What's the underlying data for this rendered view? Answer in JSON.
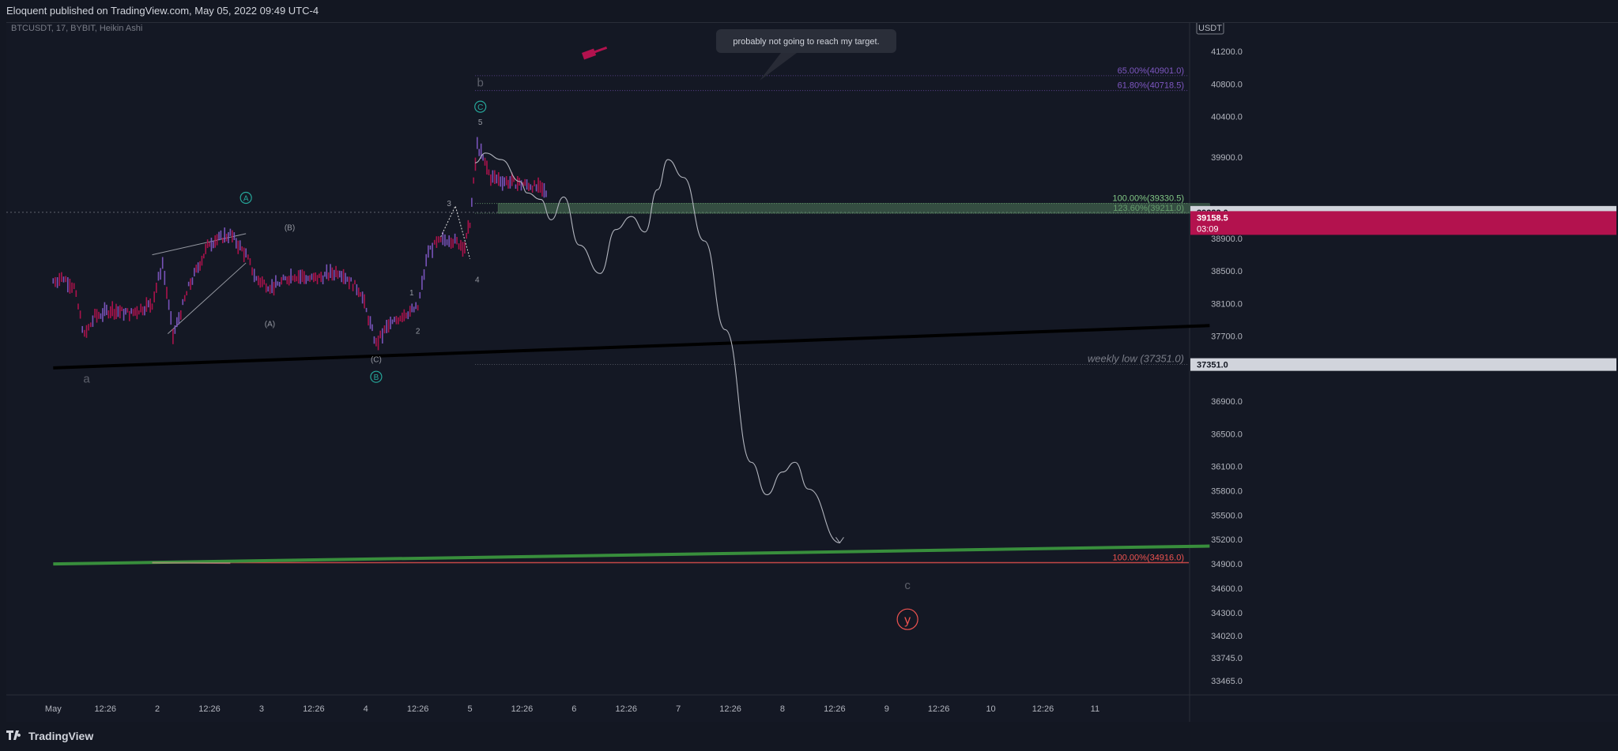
{
  "header": {
    "publisher_line": "Eloquent published on TradingView.com, May 05, 2022 09:49 UTC-4"
  },
  "footer": {
    "brand": "TradingView"
  },
  "chart_data": {
    "type": "candlestick",
    "symbol_line": "BTCUSDT, 17, BYBIT, Heikin Ashi",
    "currency_badge": "USDT",
    "price_axis": {
      "ticks": [
        "41200.0",
        "40800.0",
        "40400.0",
        "39900.0",
        "38900.0",
        "38500.0",
        "38100.0",
        "37700.0",
        "36900.0",
        "36500.0",
        "36100.0",
        "35800.0",
        "35500.0",
        "35200.0",
        "34900.0",
        "34600.0",
        "34300.0",
        "34020.0",
        "33745.0",
        "33465.0"
      ],
      "tick_values": [
        41200,
        40800,
        40400,
        39900,
        38900,
        38500,
        38100,
        37700,
        36900,
        36500,
        36100,
        35800,
        35500,
        35200,
        34900,
        34600,
        34300,
        34020,
        33745,
        33465
      ]
    },
    "time_axis": {
      "labels": [
        "May",
        "12:26",
        "2",
        "12:26",
        "3",
        "12:26",
        "4",
        "12:26",
        "5",
        "12:26",
        "6",
        "12:26",
        "7",
        "12:26",
        "8",
        "12:26",
        "9",
        "12:26",
        "10",
        "12:26",
        "11"
      ]
    },
    "price_badges": [
      {
        "label": "39222.0",
        "value": 39222.0,
        "color": "#d1d4dc",
        "text_color": "#131722"
      },
      {
        "label": "39158.5",
        "value": 39158.5,
        "color": "#b3124e",
        "text_color": "#ffffff",
        "sub": "03:09"
      },
      {
        "label": "37351.0",
        "value": 37351.0,
        "color": "#d1d4dc",
        "text_color": "#131722"
      }
    ],
    "horizontal_levels": [
      {
        "label": "65.00%(40901.0)",
        "value": 40901.0,
        "color": "#7e57c2"
      },
      {
        "label": "61.80%(40718.5)",
        "value": 40718.5,
        "color": "#7e57c2"
      },
      {
        "label": "100.00%(39330.5)",
        "value": 39330.5,
        "color": "#81c784"
      },
      {
        "label": "123.60%(39211.0)",
        "value": 39211.0,
        "color": "#81c784"
      },
      {
        "label": "weekly low (37351.0)",
        "value": 37351.0,
        "color": "#787b86"
      },
      {
        "label": "100.00%(34916.0)",
        "value": 34916.0,
        "color": "#ef5350"
      }
    ],
    "callout": {
      "text": "probably not going to reach my target."
    },
    "wave_labels": [
      {
        "text": "a",
        "t": 0.32,
        "price": 37130
      },
      {
        "text": "b",
        "t": 4.1,
        "price": 40770
      },
      {
        "text": "c",
        "t": 8.2,
        "price": 34590
      },
      {
        "text": "A",
        "t": 1.85,
        "price": 39400,
        "circled": true
      },
      {
        "text": "B",
        "t": 3.1,
        "price": 37200,
        "circled": true
      },
      {
        "text": "C",
        "t": 4.1,
        "price": 40520,
        "circled": true
      },
      {
        "text": "y",
        "t": 8.2,
        "price": 34220,
        "circled": true
      },
      {
        "text": "(B)",
        "t": 2.27,
        "price": 39000
      },
      {
        "text": "(A)",
        "t": 2.08,
        "price": 37820
      },
      {
        "text": "(C)",
        "t": 3.1,
        "price": 37380
      },
      {
        "text": "1",
        "t": 3.44,
        "price": 38200
      },
      {
        "text": "2",
        "t": 3.5,
        "price": 37730
      },
      {
        "text": "3",
        "t": 3.8,
        "price": 39300
      },
      {
        "text": "4",
        "t": 4.07,
        "price": 38360
      },
      {
        "text": "5",
        "t": 4.1,
        "price": 40300
      }
    ],
    "price_series_close": [
      [
        0.0,
        38380
      ],
      [
        0.1,
        38420
      ],
      [
        0.2,
        38300
      ],
      [
        0.3,
        37700
      ],
      [
        0.4,
        37940
      ],
      [
        0.55,
        38020
      ],
      [
        0.75,
        37980
      ],
      [
        0.95,
        38100
      ],
      [
        1.05,
        38600
      ],
      [
        1.15,
        37700
      ],
      [
        1.3,
        38300
      ],
      [
        1.5,
        38850
      ],
      [
        1.7,
        38950
      ],
      [
        1.85,
        38700
      ],
      [
        1.95,
        38400
      ],
      [
        2.1,
        38300
      ],
      [
        2.3,
        38450
      ],
      [
        2.5,
        38400
      ],
      [
        2.75,
        38500
      ],
      [
        2.95,
        38250
      ],
      [
        3.1,
        37600
      ],
      [
        3.2,
        37800
      ],
      [
        3.35,
        37960
      ],
      [
        3.5,
        38050
      ],
      [
        3.6,
        38750
      ],
      [
        3.7,
        38850
      ],
      [
        3.8,
        38900
      ],
      [
        3.95,
        38800
      ],
      [
        4.0,
        39100
      ],
      [
        4.07,
        40050
      ],
      [
        4.2,
        39650
      ],
      [
        4.35,
        39600
      ],
      [
        4.6,
        39550
      ],
      [
        4.75,
        39450
      ]
    ],
    "projection_path": [
      [
        4.05,
        39830
      ],
      [
        4.15,
        39950
      ],
      [
        4.3,
        39870
      ],
      [
        4.48,
        39600
      ],
      [
        4.55,
        39460
      ],
      [
        4.68,
        39380
      ],
      [
        4.78,
        39130
      ],
      [
        4.9,
        39410
      ],
      [
        5.05,
        38820
      ],
      [
        5.25,
        38470
      ],
      [
        5.4,
        39010
      ],
      [
        5.55,
        39170
      ],
      [
        5.68,
        38980
      ],
      [
        5.8,
        39500
      ],
      [
        5.9,
        39870
      ],
      [
        6.05,
        39650
      ],
      [
        6.25,
        38870
      ],
      [
        6.45,
        37780
      ],
      [
        6.7,
        36150
      ],
      [
        6.85,
        35750
      ],
      [
        7.0,
        36030
      ],
      [
        7.12,
        36150
      ],
      [
        7.25,
        35820
      ],
      [
        7.55,
        35160
      ]
    ],
    "trend_lines": [
      {
        "name": "black support",
        "points": [
          [
            0.0,
            37310
          ],
          [
            11.1,
            37830
          ]
        ],
        "color": "#000000",
        "width": 4
      },
      {
        "name": "green support",
        "points": [
          [
            0.0,
            34900
          ],
          [
            11.1,
            35120
          ]
        ],
        "color": "#388e3c",
        "width": 4
      },
      {
        "name": "wedge-upper",
        "points": [
          [
            0.95,
            38700
          ],
          [
            1.85,
            38960
          ]
        ],
        "color": "#9598a1",
        "width": 1
      },
      {
        "name": "wedge-lower",
        "points": [
          [
            1.1,
            37730
          ],
          [
            1.85,
            38600
          ]
        ],
        "color": "#9598a1",
        "width": 1
      }
    ],
    "zone_box": {
      "from_t": 4.27,
      "to_t": 11.1,
      "top": 39330.5,
      "bottom": 39211.0,
      "color": "#4f7a5a"
    },
    "y_range": [
      33300,
      41550
    ],
    "x_range": [
      -0.45,
      10.9
    ]
  }
}
